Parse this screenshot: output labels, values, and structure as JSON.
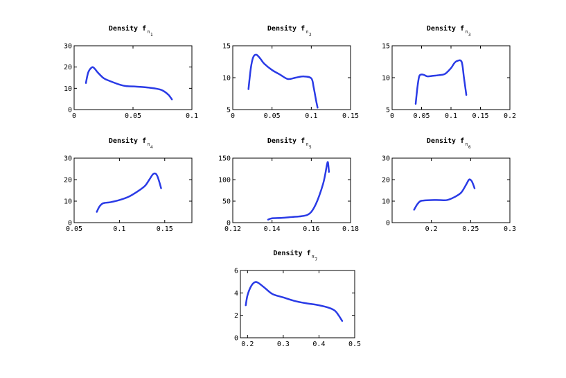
{
  "colors": {
    "curve": "#2a3be6",
    "axis": "#000000",
    "background": "#ffffff"
  },
  "chart_data": [
    {
      "type": "line",
      "title": "Density f",
      "title_symbol": "π",
      "title_index": "1",
      "xlim": [
        0,
        0.1
      ],
      "ylim": [
        0,
        30
      ],
      "xticks": [
        0,
        0.05,
        0.1
      ],
      "xtick_labels": [
        "0",
        "0.05",
        "0.1"
      ],
      "yticks": [
        0,
        10,
        20,
        30
      ],
      "ytick_labels": [
        "0",
        "10",
        "20",
        "30"
      ],
      "series": [
        {
          "x": [
            0.01,
            0.012,
            0.015,
            0.017,
            0.02,
            0.025,
            0.03,
            0.04,
            0.045,
            0.05,
            0.06,
            0.07,
            0.075,
            0.08,
            0.083
          ],
          "y": [
            12.5,
            17.5,
            19.8,
            19.5,
            17.5,
            14.8,
            13.5,
            11.5,
            11.0,
            10.9,
            10.5,
            9.8,
            9.0,
            7.0,
            4.8
          ]
        }
      ],
      "grid": false
    },
    {
      "type": "line",
      "title": "Density f",
      "title_symbol": "π",
      "title_index": "2",
      "xlim": [
        0,
        0.15
      ],
      "ylim": [
        5,
        15
      ],
      "xticks": [
        0,
        0.05,
        0.1,
        0.15
      ],
      "xtick_labels": [
        "0",
        "0.05",
        "0.1",
        "0.15"
      ],
      "yticks": [
        5,
        10,
        15
      ],
      "ytick_labels": [
        "5",
        "10",
        "15"
      ],
      "series": [
        {
          "x": [
            0.02,
            0.023,
            0.026,
            0.03,
            0.035,
            0.04,
            0.05,
            0.06,
            0.07,
            0.08,
            0.09,
            0.1,
            0.103,
            0.106,
            0.108
          ],
          "y": [
            8.2,
            11.5,
            13.2,
            13.6,
            13.0,
            12.2,
            11.2,
            10.5,
            9.8,
            10.0,
            10.2,
            9.9,
            8.5,
            6.5,
            5.3
          ]
        }
      ],
      "grid": false
    },
    {
      "type": "line",
      "title": "Density f",
      "title_symbol": "π",
      "title_index": "3",
      "xlim": [
        0,
        0.2
      ],
      "ylim": [
        5,
        15
      ],
      "xticks": [
        0,
        0.05,
        0.1,
        0.15,
        0.2
      ],
      "xtick_labels": [
        "0",
        "0.05",
        "0.1",
        "0.15",
        "0.2"
      ],
      "yticks": [
        5,
        10,
        15
      ],
      "ytick_labels": [
        "5",
        "10",
        "15"
      ],
      "series": [
        {
          "x": [
            0.04,
            0.043,
            0.046,
            0.05,
            0.055,
            0.06,
            0.07,
            0.08,
            0.09,
            0.1,
            0.105,
            0.11,
            0.118,
            0.122,
            0.126
          ],
          "y": [
            5.9,
            8.5,
            10.2,
            10.5,
            10.4,
            10.2,
            10.3,
            10.4,
            10.6,
            11.5,
            12.2,
            12.6,
            12.5,
            10.0,
            7.3
          ]
        }
      ],
      "grid": false
    },
    {
      "type": "line",
      "title": "Density f",
      "title_symbol": "π",
      "title_index": "4",
      "xlim": [
        0.05,
        0.18
      ],
      "ylim": [
        0,
        30
      ],
      "xticks": [
        0.05,
        0.1,
        0.15
      ],
      "xtick_labels": [
        "0.05",
        "0.1",
        "0.15"
      ],
      "yticks": [
        0,
        10,
        20,
        30
      ],
      "ytick_labels": [
        "0",
        "10",
        "20",
        "30"
      ],
      "series": [
        {
          "x": [
            0.075,
            0.078,
            0.082,
            0.09,
            0.1,
            0.11,
            0.12,
            0.128,
            0.133,
            0.137,
            0.14,
            0.142,
            0.144,
            0.146
          ],
          "y": [
            5.0,
            7.5,
            9.0,
            9.5,
            10.5,
            12.0,
            14.5,
            17.0,
            20.0,
            22.5,
            22.8,
            21.5,
            19.0,
            16.0
          ]
        }
      ],
      "grid": false
    },
    {
      "type": "line",
      "title": "Density f",
      "title_symbol": "π",
      "title_index": "5",
      "xlim": [
        0.12,
        0.18
      ],
      "ylim": [
        0,
        150
      ],
      "xticks": [
        0.12,
        0.14,
        0.16,
        0.18
      ],
      "xtick_labels": [
        "0.12",
        "0.14",
        "0.16",
        "0.18"
      ],
      "yticks": [
        0,
        50,
        100,
        150
      ],
      "ytick_labels": [
        "0",
        "50",
        "100",
        "150"
      ],
      "series": [
        {
          "x": [
            0.138,
            0.14,
            0.145,
            0.15,
            0.155,
            0.158,
            0.16,
            0.162,
            0.164,
            0.166,
            0.167,
            0.168,
            0.1685,
            0.169
          ],
          "y": [
            7,
            10,
            11,
            13,
            15,
            18,
            25,
            40,
            62,
            90,
            110,
            135,
            140,
            118
          ]
        }
      ],
      "grid": false
    },
    {
      "type": "line",
      "title": "Density f",
      "title_symbol": "π",
      "title_index": "6",
      "xlim": [
        0.15,
        0.3
      ],
      "ylim": [
        0,
        30
      ],
      "xticks": [
        0.2,
        0.25,
        0.3
      ],
      "xtick_labels": [
        "0.2",
        "0.25",
        "0.3"
      ],
      "yticks": [
        0,
        10,
        20,
        30
      ],
      "ytick_labels": [
        "0",
        "10",
        "20",
        "30"
      ],
      "series": [
        {
          "x": [
            0.178,
            0.182,
            0.186,
            0.19,
            0.2,
            0.21,
            0.22,
            0.23,
            0.238,
            0.244,
            0.248,
            0.251,
            0.253,
            0.255
          ],
          "y": [
            6.0,
            8.5,
            10.0,
            10.3,
            10.5,
            10.5,
            10.5,
            12.0,
            14.0,
            17.5,
            20.0,
            19.5,
            18.0,
            16.0
          ]
        }
      ],
      "grid": false
    },
    {
      "type": "line",
      "title": "Density f",
      "title_symbol": "π",
      "title_index": "7",
      "xlim": [
        0.18,
        0.5
      ],
      "ylim": [
        0,
        6
      ],
      "xticks": [
        0.2,
        0.3,
        0.4,
        0.5
      ],
      "xtick_labels": [
        "0.2",
        "0.3",
        "0.4",
        "0.5"
      ],
      "yticks": [
        0,
        2,
        4,
        6
      ],
      "ytick_labels": [
        "0",
        "2",
        "4",
        "6"
      ],
      "series": [
        {
          "x": [
            0.195,
            0.2,
            0.21,
            0.22,
            0.23,
            0.25,
            0.27,
            0.3,
            0.33,
            0.36,
            0.4,
            0.43,
            0.445,
            0.455,
            0.465
          ],
          "y": [
            2.9,
            3.8,
            4.6,
            4.95,
            4.9,
            4.4,
            3.9,
            3.6,
            3.3,
            3.1,
            2.9,
            2.65,
            2.4,
            2.0,
            1.5
          ]
        }
      ],
      "grid": false
    }
  ]
}
